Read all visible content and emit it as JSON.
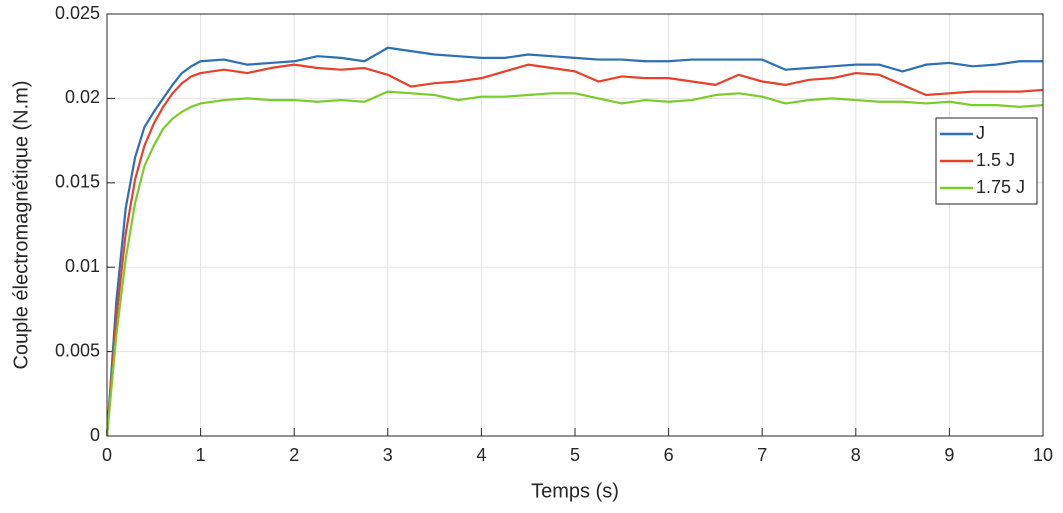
{
  "chart_data": {
    "type": "line",
    "xlabel": "Temps (s)",
    "ylabel": "Couple électromagnétique  (N.m)",
    "x": [
      0,
      0.05,
      0.1,
      0.2,
      0.3,
      0.4,
      0.5,
      0.6,
      0.7,
      0.8,
      0.9,
      1,
      1.25,
      1.5,
      1.75,
      2,
      2.25,
      2.5,
      2.75,
      3,
      3.25,
      3.5,
      3.75,
      4,
      4.25,
      4.5,
      4.75,
      5,
      5.25,
      5.5,
      5.75,
      6,
      6.25,
      6.5,
      6.75,
      7,
      7.25,
      7.5,
      7.75,
      8,
      8.25,
      8.5,
      8.75,
      9,
      9.25,
      9.5,
      9.75,
      10
    ],
    "series": [
      {
        "name": "J",
        "color": "#2b6fb5",
        "values": [
          0,
          0.004,
          0.008,
          0.0135,
          0.0165,
          0.0183,
          0.0192,
          0.02,
          0.0208,
          0.0215,
          0.0219,
          0.0222,
          0.0223,
          0.022,
          0.0221,
          0.0222,
          0.0225,
          0.0224,
          0.0222,
          0.023,
          0.0228,
          0.0226,
          0.0225,
          0.0224,
          0.0224,
          0.0226,
          0.0225,
          0.0224,
          0.0223,
          0.0223,
          0.0222,
          0.0222,
          0.0223,
          0.0223,
          0.0223,
          0.0223,
          0.0217,
          0.0218,
          0.0219,
          0.022,
          0.022,
          0.0216,
          0.022,
          0.0221,
          0.0219,
          0.022,
          0.0222,
          0.0222
        ]
      },
      {
        "name": "1.5 J",
        "color": "#e8402a",
        "values": [
          0,
          0.0035,
          0.007,
          0.012,
          0.0152,
          0.0172,
          0.0185,
          0.0195,
          0.0203,
          0.0209,
          0.0213,
          0.0215,
          0.0217,
          0.0215,
          0.0218,
          0.022,
          0.0218,
          0.0217,
          0.0218,
          0.0214,
          0.0207,
          0.0209,
          0.021,
          0.0212,
          0.0216,
          0.022,
          0.0218,
          0.0216,
          0.021,
          0.0213,
          0.0212,
          0.0212,
          0.021,
          0.0208,
          0.0214,
          0.021,
          0.0208,
          0.0211,
          0.0212,
          0.0215,
          0.0214,
          0.0208,
          0.0202,
          0.0203,
          0.0204,
          0.0204,
          0.0204,
          0.0205
        ]
      },
      {
        "name": "1.75 J",
        "color": "#7acc29",
        "values": [
          0,
          0.003,
          0.006,
          0.0105,
          0.0138,
          0.016,
          0.0172,
          0.0182,
          0.0188,
          0.0192,
          0.0195,
          0.0197,
          0.0199,
          0.02,
          0.0199,
          0.0199,
          0.0198,
          0.0199,
          0.0198,
          0.0204,
          0.0203,
          0.0202,
          0.0199,
          0.0201,
          0.0201,
          0.0202,
          0.0203,
          0.0203,
          0.02,
          0.0197,
          0.0199,
          0.0198,
          0.0199,
          0.0202,
          0.0203,
          0.0201,
          0.0197,
          0.0199,
          0.02,
          0.0199,
          0.0198,
          0.0198,
          0.0197,
          0.0198,
          0.0196,
          0.0196,
          0.0195,
          0.0196
        ]
      }
    ],
    "xlim": [
      0,
      10
    ],
    "xticks": [
      0,
      1,
      2,
      3,
      4,
      5,
      6,
      7,
      8,
      9,
      10
    ],
    "ylim": [
      0,
      0.025
    ],
    "yticks": [
      0,
      0.005,
      0.01,
      0.015,
      0.02,
      0.025
    ],
    "grid": true,
    "legend_location": "east"
  }
}
